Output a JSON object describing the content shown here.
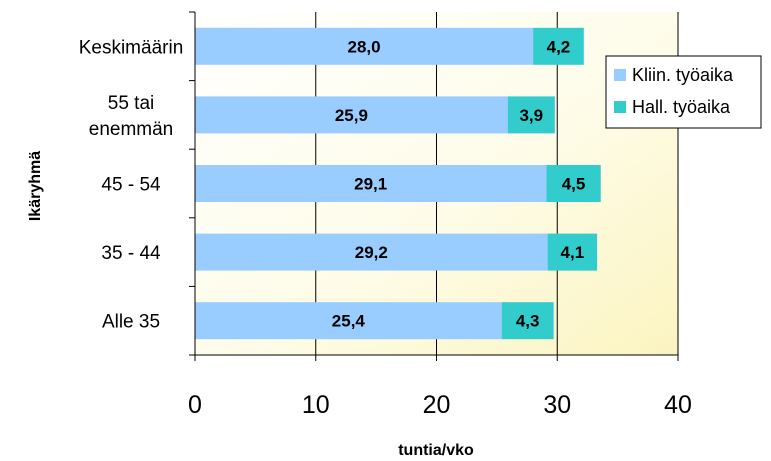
{
  "chart_data": {
    "type": "bar",
    "orientation": "horizontal",
    "stacked": true,
    "categories": [
      "Keskimäärin",
      "55 tai enemmän",
      "45 - 54",
      "35 - 44",
      "Alle 35"
    ],
    "category_lines": [
      [
        "Keskimäärin"
      ],
      [
        "55 tai",
        "enemmän"
      ],
      [
        "45 - 54"
      ],
      [
        "35 - 44"
      ],
      [
        "Alle 35"
      ]
    ],
    "series": [
      {
        "name": "Kliin. työaika",
        "color": "#99ccff",
        "values": [
          28.0,
          25.9,
          29.1,
          29.2,
          25.4
        ],
        "labels": [
          "28,0",
          "25,9",
          "29,1",
          "29,2",
          "25,4"
        ]
      },
      {
        "name": "Hall. työaika",
        "color": "#33cccc",
        "values": [
          4.2,
          3.9,
          4.5,
          4.1,
          4.3
        ],
        "labels": [
          "4,2",
          "3,9",
          "4,5",
          "4,1",
          "4,3"
        ]
      }
    ],
    "xlabel": "tuntia/vko",
    "ylabel": "Ikäryhmä",
    "xlim": [
      0,
      40
    ],
    "xticks": [
      0,
      10,
      20,
      30,
      40
    ],
    "grid": "vertical",
    "legend_position": "top-right",
    "background": "light-yellow gradient"
  }
}
